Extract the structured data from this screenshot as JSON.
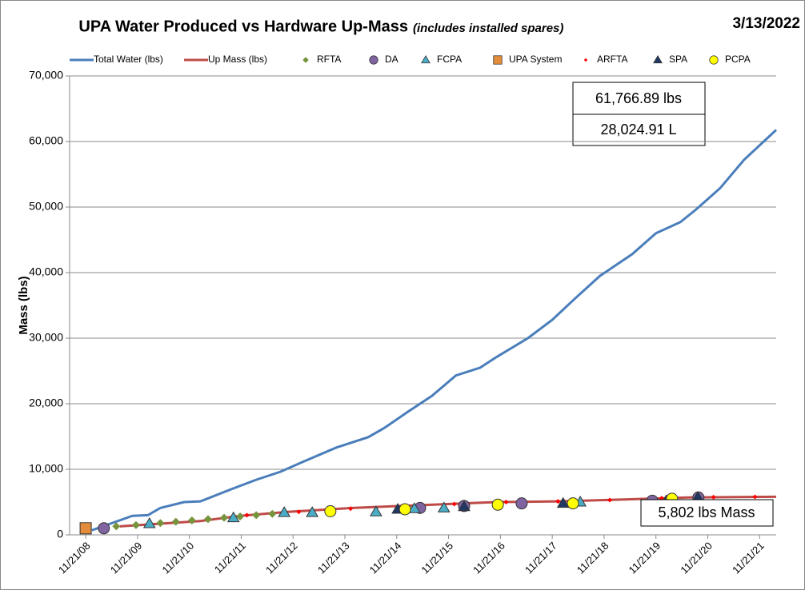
{
  "chart_data": {
    "type": "line",
    "title": "UPA Water Produced vs Hardware Up-Mass",
    "subtitle": "(includes installed spares)",
    "date_label": "3/13/2022",
    "y_label": "Mass (lbs)",
    "annotations": [
      "61,766.89  lbs",
      "28,024.91  L",
      "5,802  lbs Mass"
    ],
    "xlim": [
      2008.58,
      2022.21
    ],
    "xticks": [
      {
        "value": 2008.89,
        "label": "11/21/08"
      },
      {
        "value": 2009.89,
        "label": "11/21/09"
      },
      {
        "value": 2010.89,
        "label": "11/21/10"
      },
      {
        "value": 2011.89,
        "label": "11/21/11"
      },
      {
        "value": 2012.89,
        "label": "11/21/12"
      },
      {
        "value": 2013.89,
        "label": "11/21/13"
      },
      {
        "value": 2014.89,
        "label": "11/21/14"
      },
      {
        "value": 2015.89,
        "label": "11/21/15"
      },
      {
        "value": 2016.89,
        "label": "11/21/16"
      },
      {
        "value": 2017.89,
        "label": "11/21/17"
      },
      {
        "value": 2018.89,
        "label": "11/21/18"
      },
      {
        "value": 2019.89,
        "label": "11/21/19"
      },
      {
        "value": 2020.89,
        "label": "11/21/20"
      },
      {
        "value": 2021.89,
        "label": "11/21/21"
      }
    ],
    "ylim": [
      0,
      70000
    ],
    "yticks": [
      0,
      {
        "value": 10000,
        "label": "10,000"
      },
      {
        "value": 20000,
        "label": "20,000"
      },
      {
        "value": 30000,
        "label": "30,000"
      },
      {
        "value": 40000,
        "label": "40,000"
      },
      {
        "value": 50000,
        "label": "50,000"
      },
      {
        "value": 60000,
        "label": "60,000"
      },
      {
        "value": 70000,
        "label": "70,000"
      }
    ],
    "grid": true,
    "series": [
      {
        "name": "Total Water (lbs)",
        "color": "#4a7ebb",
        "mark": "line",
        "x": [
          2009.01,
          2009.79,
          2010.09,
          2010.33,
          2010.79,
          2011.1,
          2011.71,
          2012.18,
          2012.64,
          2013.1,
          2013.72,
          2014.34,
          2014.65,
          2015.11,
          2015.57,
          2016.03,
          2016.5,
          2016.81,
          2017.42,
          2017.89,
          2018.35,
          2018.81,
          2019.43,
          2019.89,
          2020.36,
          2020.66,
          2021.13,
          2021.59,
          2022.21
        ],
        "values": [
          700,
          2900,
          3000,
          4100,
          5000,
          5100,
          7000,
          8400,
          9600,
          11200,
          13300,
          14900,
          16300,
          18800,
          21200,
          24300,
          25500,
          27100,
          30000,
          32800,
          36200,
          39500,
          42800,
          46000,
          47700,
          49600,
          52900,
          57200,
          61767
        ]
      },
      {
        "name": "Up Mass (lbs)",
        "color": "#be4b48",
        "mark": "line",
        "x": [
          2009.55,
          2011.1,
          2011.87,
          2012.79,
          2014.03,
          2015.26,
          2016.81,
          2018.04,
          2019.28,
          2020.51,
          2022.21
        ],
        "values": [
          1300,
          2100,
          2900,
          3500,
          4100,
          4500,
          5000,
          5100,
          5400,
          5700,
          5802
        ]
      },
      {
        "name": "RFTA",
        "color": "#77933c",
        "mark": "diamond",
        "x": [
          2009.48,
          2009.86,
          2010.33,
          2010.63,
          2010.94,
          2011.25,
          2011.56,
          2011.87,
          2012.18,
          2012.49
        ],
        "values": [
          1300,
          1500,
          1800,
          2000,
          2200,
          2400,
          2600,
          2800,
          3000,
          3200
        ]
      },
      {
        "name": "DA",
        "color": "#8064a2",
        "mark": "circle",
        "x": [
          2009.24,
          2015.34,
          2016.19,
          2017.3,
          2019.82,
          2020.71
        ],
        "values": [
          1000,
          4100,
          4400,
          4800,
          5200,
          5700
        ]
      },
      {
        "name": "FCPA",
        "color": "#4bacc6",
        "mark": "triangle",
        "x": [
          2010.12,
          2011.74,
          2012.72,
          2013.26,
          2014.49,
          2015.23,
          2015.8,
          2018.43,
          2020.17
        ],
        "values": [
          1700,
          2600,
          3400,
          3400,
          3500,
          4000,
          4100,
          5000,
          5300
        ]
      },
      {
        "name": "UPA System",
        "color": "#e38d3c",
        "mark": "square",
        "x": [
          2008.89
        ],
        "values": [
          1000
        ]
      },
      {
        "name": "ARFTA",
        "color": "#ff0000",
        "mark": "small-diamond",
        "x": [
          2012.0,
          2013.0,
          2014.0,
          2015.0,
          2016.0,
          2017.0,
          2018.0,
          2019.0,
          2020.0,
          2021.0,
          2021.8
        ],
        "values": [
          3000,
          3500,
          4000,
          4400,
          4700,
          5000,
          5100,
          5300,
          5600,
          5750,
          5790
        ]
      },
      {
        "name": "SPA",
        "color": "#1f3864",
        "mark": "triangle",
        "x": [
          2014.91,
          2016.19,
          2018.1,
          2020.09,
          2020.7
        ],
        "values": [
          3900,
          4300,
          4800,
          5200,
          5700
        ]
      },
      {
        "name": "PCPA",
        "color": "#ffff00",
        "mark": "circle",
        "x": [
          2013.61,
          2015.05,
          2016.84,
          2018.29,
          2020.2
        ],
        "values": [
          3600,
          3900,
          4600,
          4800,
          5500
        ]
      }
    ]
  }
}
